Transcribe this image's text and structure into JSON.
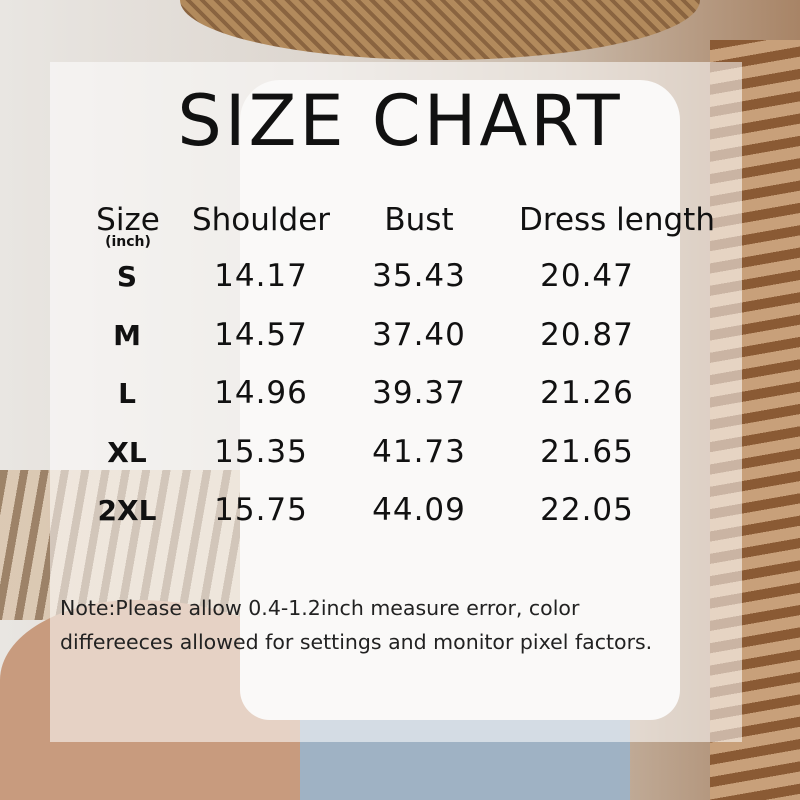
{
  "title": "SIZE CHART",
  "headers": {
    "size": "Size",
    "unit": "(inch)",
    "shoulder": "Shoulder",
    "bust": "Bust",
    "dress_length": "Dress length"
  },
  "rows": [
    {
      "size": "S",
      "shoulder": "14.17",
      "bust": "35.43",
      "dress_length": "20.47"
    },
    {
      "size": "M",
      "shoulder": "14.57",
      "bust": "37.40",
      "dress_length": "20.87"
    },
    {
      "size": "L",
      "shoulder": "14.96",
      "bust": "39.37",
      "dress_length": "21.26"
    },
    {
      "size": "XL",
      "shoulder": "15.35",
      "bust": "41.73",
      "dress_length": "21.65"
    },
    {
      "size": "2XL",
      "shoulder": "15.75",
      "bust": "44.09",
      "dress_length": "22.05"
    }
  ],
  "note": {
    "line1": "Note:Please allow 0.4-1.2inch measure error, color",
    "line2": "differeeces allowed for settings and monitor pixel factors."
  }
}
